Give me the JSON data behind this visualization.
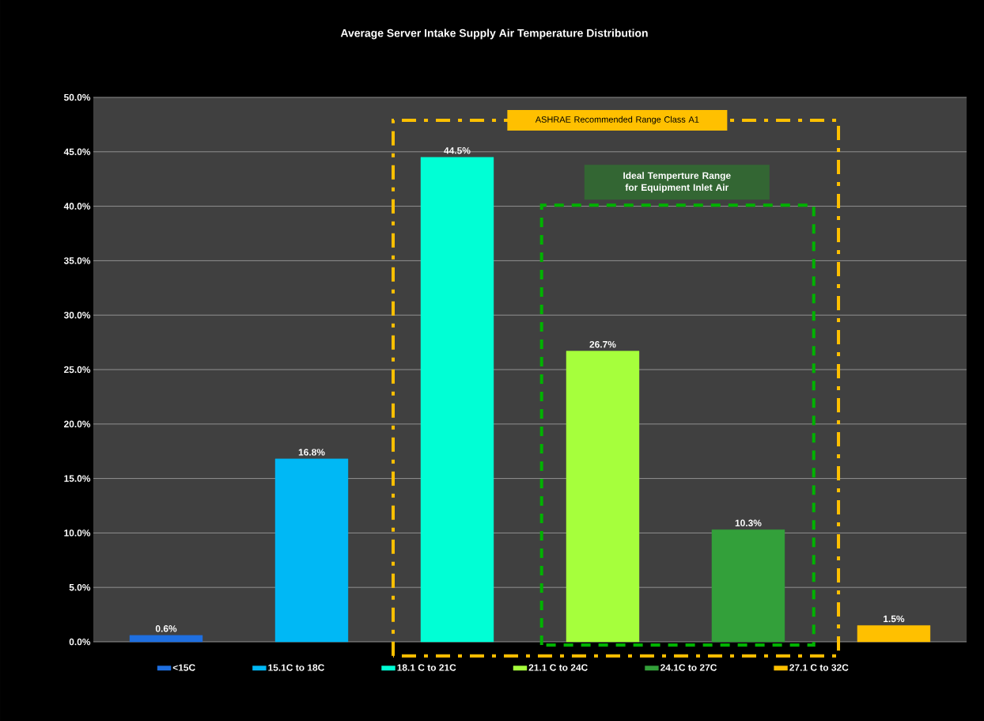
{
  "chart_data": {
    "type": "bar",
    "title": "Average Server Intake Supply Air Temperature Distribution",
    "categories": [
      null,
      null,
      null,
      null,
      null,
      null
    ],
    "series": [
      {
        "name": "<15C",
        "color": "#1f6fe0",
        "values": [
          0.6,
          null,
          null,
          null,
          null,
          null
        ],
        "value_labels": [
          "0.6%",
          null,
          null,
          null,
          null,
          null
        ]
      },
      {
        "name": "15.1C to 18C",
        "color": "#00b8f5",
        "values": [
          null,
          16.8,
          null,
          null,
          null,
          null
        ],
        "value_labels": [
          null,
          "16.8%",
          null,
          null,
          null,
          null
        ]
      },
      {
        "name": "18.1 C to 21C",
        "color": "#00ffd5",
        "values": [
          null,
          null,
          44.5,
          null,
          null,
          null
        ],
        "value_labels": [
          null,
          null,
          "44.5%",
          null,
          null,
          null
        ]
      },
      {
        "name": "21.1 C to 24C",
        "color": "#a6ff3c",
        "values": [
          null,
          null,
          null,
          26.7,
          null,
          null
        ],
        "value_labels": [
          null,
          null,
          null,
          "26.7%",
          null,
          null
        ]
      },
      {
        "name": "24.1C to 27C",
        "color": "#33a03a",
        "values": [
          null,
          null,
          null,
          null,
          10.3,
          null
        ],
        "value_labels": [
          null,
          null,
          null,
          null,
          "10.3%",
          null
        ]
      },
      {
        "name": "27.1 C to 32C",
        "color": "#ffc000",
        "values": [
          null,
          null,
          null,
          null,
          null,
          1.5
        ],
        "value_labels": [
          null,
          null,
          null,
          null,
          null,
          "1.5%"
        ]
      }
    ],
    "ylim": [
      0,
      50
    ],
    "yticks": [
      {
        "value": 0,
        "label": "0.0%"
      },
      {
        "value": 5,
        "label": "5.0%"
      },
      {
        "value": 10,
        "label": "10.0%"
      },
      {
        "value": 15,
        "label": "15.0%"
      },
      {
        "value": 20,
        "label": "20.0%"
      },
      {
        "value": 25,
        "label": "25.0%"
      },
      {
        "value": 30,
        "label": "30.0%"
      },
      {
        "value": 35,
        "label": "35.0%"
      },
      {
        "value": 40,
        "label": "40.0%"
      },
      {
        "value": 45,
        "label": "45.0%"
      },
      {
        "value": 50,
        "label": "50.0%"
      }
    ],
    "grid": "y",
    "legend": "bottom",
    "tick_labels": "y",
    "annotations": [
      "ASHRAE Recommended Range Class A1",
      "Ideal Temperture Range for Equipment Inlet Air"
    ]
  }
}
